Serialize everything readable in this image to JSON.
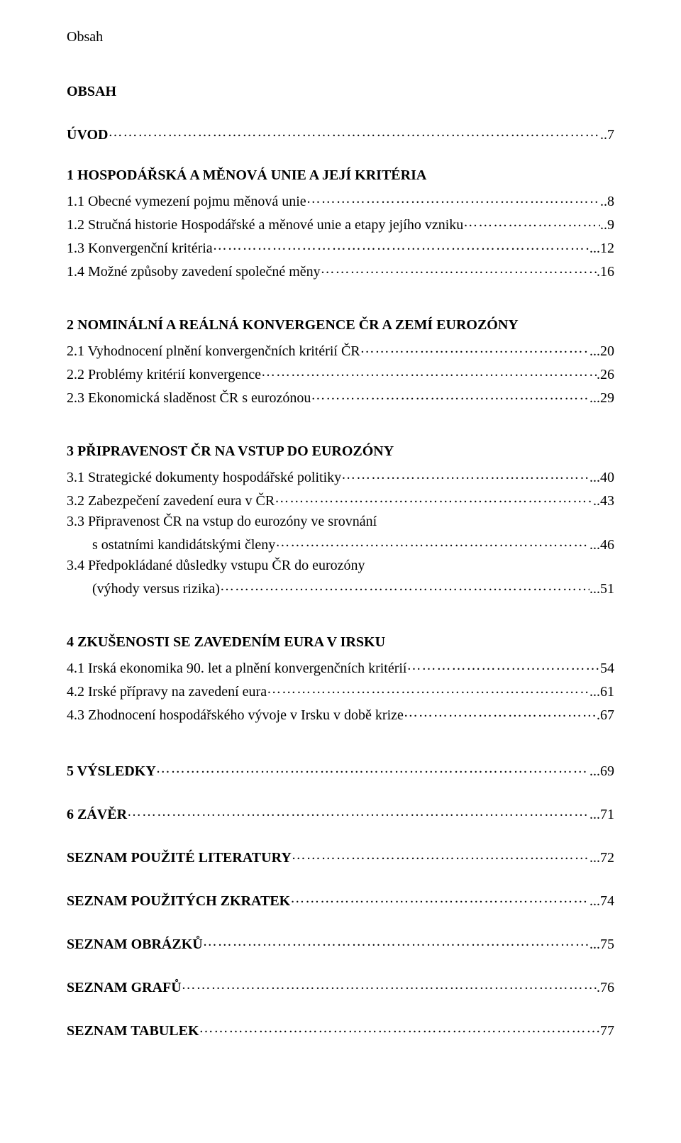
{
  "header_label": "Obsah",
  "main_title": "OBSAH",
  "sections": [
    {
      "heading": null,
      "items": [
        {
          "label": "ÚVOD",
          "page": "..7",
          "bold": true,
          "indent": false
        }
      ]
    },
    {
      "heading": null,
      "items": [
        {
          "label": "1 HOSPODÁŘSKÁ A MĚNOVÁ UNIE A JEJÍ KRITÉRIA",
          "page": "",
          "bold": true,
          "indent": false,
          "no_leader": true
        },
        {
          "label": "1.1 Obecné vymezení pojmu měnová unie",
          "page": "..8",
          "bold": false,
          "indent": false
        },
        {
          "label": "1.2 Stručná historie Hospodářské a měnové unie a etapy jejího vzniku",
          "page": "..9",
          "bold": false,
          "indent": false
        },
        {
          "label": "1.3 Konvergenční kritéria",
          "page": "...12",
          "bold": false,
          "indent": false
        },
        {
          "label": "1.4 Možné způsoby zavedení společné měny",
          "page": ".16",
          "bold": false,
          "indent": false
        }
      ]
    },
    {
      "heading": null,
      "items": [
        {
          "label": "2 NOMINÁLNÍ A REÁLNÁ KONVERGENCE ČR A ZEMÍ EUROZÓNY",
          "page": "",
          "bold": true,
          "indent": false,
          "no_leader": true
        },
        {
          "label": "2.1 Vyhodnocení plnění konvergenčních kritérií ČR",
          "page": "...20",
          "bold": false,
          "indent": false
        },
        {
          "label": "2.2 Problémy kritérií konvergence",
          "page": ".26",
          "bold": false,
          "indent": false
        },
        {
          "label": "2.3 Ekonomická sladěnost ČR s eurozónou",
          "page": "...29",
          "bold": false,
          "indent": false
        }
      ]
    },
    {
      "heading": null,
      "items": [
        {
          "label": "3 PŘIPRAVENOST ČR NA VSTUP DO EUROZÓNY",
          "page": "",
          "bold": true,
          "indent": false,
          "no_leader": true
        },
        {
          "label": "3.1 Strategické dokumenty hospodářské politiky",
          "page": "...40",
          "bold": false,
          "indent": false
        },
        {
          "label": "3.2 Zabezpečení zavedení eura v ČR",
          "page": "..43",
          "bold": false,
          "indent": false
        },
        {
          "label": "3.3 Připravenost ČR na vstup do eurozóny ve srovnání",
          "page": "",
          "bold": false,
          "indent": false,
          "no_leader": true
        },
        {
          "label": "s ostatními kandidátskými členy",
          "page": "...46",
          "bold": false,
          "indent": true
        },
        {
          "label": "3.4 Předpokládané důsledky vstupu ČR do eurozóny",
          "page": "",
          "bold": false,
          "indent": false,
          "no_leader": true
        },
        {
          "label": "(výhody versus rizika)",
          "page": "...51",
          "bold": false,
          "indent": true
        }
      ]
    },
    {
      "heading": null,
      "items": [
        {
          "label": "4 ZKUŠENOSTI SE ZAVEDENÍM EURA V IRSKU",
          "page": "",
          "bold": true,
          "indent": false,
          "no_leader": true
        },
        {
          "label": "4.1 Irská ekonomika 90. let a plnění konvergenčních kritérií",
          "page": "54",
          "bold": false,
          "indent": false
        },
        {
          "label": "4.2 Irské přípravy na zavedení eura",
          "page": "...61",
          "bold": false,
          "indent": false
        },
        {
          "label": "4.3 Zhodnocení hospodářského vývoje v Irsku v době krize",
          "page": ".67",
          "bold": false,
          "indent": false
        }
      ]
    },
    {
      "heading": null,
      "items": [
        {
          "label": "5 VÝSLEDKY",
          "page": "...69",
          "bold": true,
          "indent": false
        }
      ]
    },
    {
      "heading": null,
      "items": [
        {
          "label": "6 ZÁVĚR",
          "page": "...71",
          "bold": true,
          "indent": false
        }
      ]
    },
    {
      "heading": null,
      "items": [
        {
          "label": "SEZNAM POUŽITÉ LITERATURY",
          "page": "...72",
          "bold": true,
          "indent": false
        }
      ]
    },
    {
      "heading": null,
      "items": [
        {
          "label": "SEZNAM POUŽITÝCH ZKRATEK",
          "page": "...74",
          "bold": true,
          "indent": false
        }
      ]
    },
    {
      "heading": null,
      "items": [
        {
          "label": "SEZNAM OBRÁZKŮ",
          "page": "...75",
          "bold": true,
          "indent": false
        }
      ]
    },
    {
      "heading": null,
      "items": [
        {
          "label": "SEZNAM GRAFŮ",
          "page": ".76",
          "bold": true,
          "indent": false
        }
      ]
    },
    {
      "heading": null,
      "items": [
        {
          "label": "SEZNAM TABULEK",
          "page": "77",
          "bold": true,
          "indent": false
        }
      ]
    }
  ],
  "colors": {
    "text": "#000000",
    "background": "#ffffff"
  },
  "typography": {
    "font_family": "Times New Roman",
    "base_size_pt": 15
  }
}
